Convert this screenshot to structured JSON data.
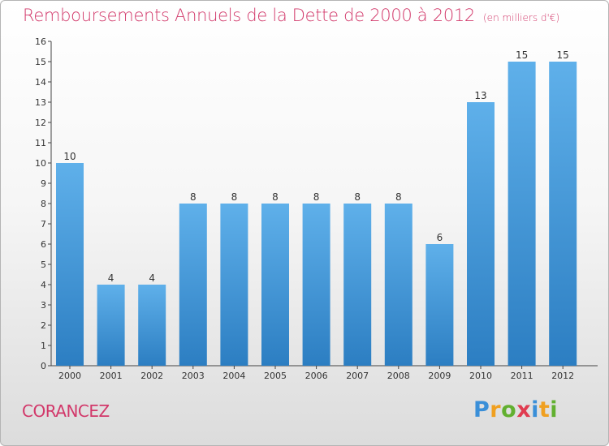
{
  "title": "Remboursements Annuels de la Dette de 2000 à 2012",
  "subtitle": "(en milliers d'€)",
  "city": "CORANCEZ",
  "logo": {
    "letters": [
      "P",
      "r",
      "o",
      "x",
      "i",
      "t",
      "i"
    ],
    "colors": [
      "#3a8fd8",
      "#f0a020",
      "#62b030",
      "#e03c50",
      "#3a8fd8",
      "#f0a020",
      "#62b030"
    ]
  },
  "colors": {
    "bar_top": "#5fb0ea",
    "bar_bottom": "#2c7ec2",
    "accent": "#d2386a"
  },
  "chart_data": {
    "type": "bar",
    "categories": [
      "2000",
      "2001",
      "2002",
      "2003",
      "2004",
      "2005",
      "2006",
      "2007",
      "2008",
      "2009",
      "2010",
      "2011",
      "2012"
    ],
    "values": [
      10,
      4,
      4,
      8,
      8,
      8,
      8,
      8,
      8,
      6,
      13,
      15,
      15
    ],
    "data_labels": [
      "10",
      "4",
      "4",
      "8",
      "8",
      "8",
      "8",
      "8",
      "8",
      "6",
      "13",
      "15",
      "15"
    ],
    "yticks": [
      "0",
      "1",
      "2",
      "3",
      "4",
      "5",
      "6",
      "7",
      "8",
      "9",
      "10",
      "11",
      "12",
      "13",
      "14",
      "15",
      "16"
    ],
    "ylim": [
      0,
      16
    ],
    "grid": false,
    "legend": "none"
  }
}
